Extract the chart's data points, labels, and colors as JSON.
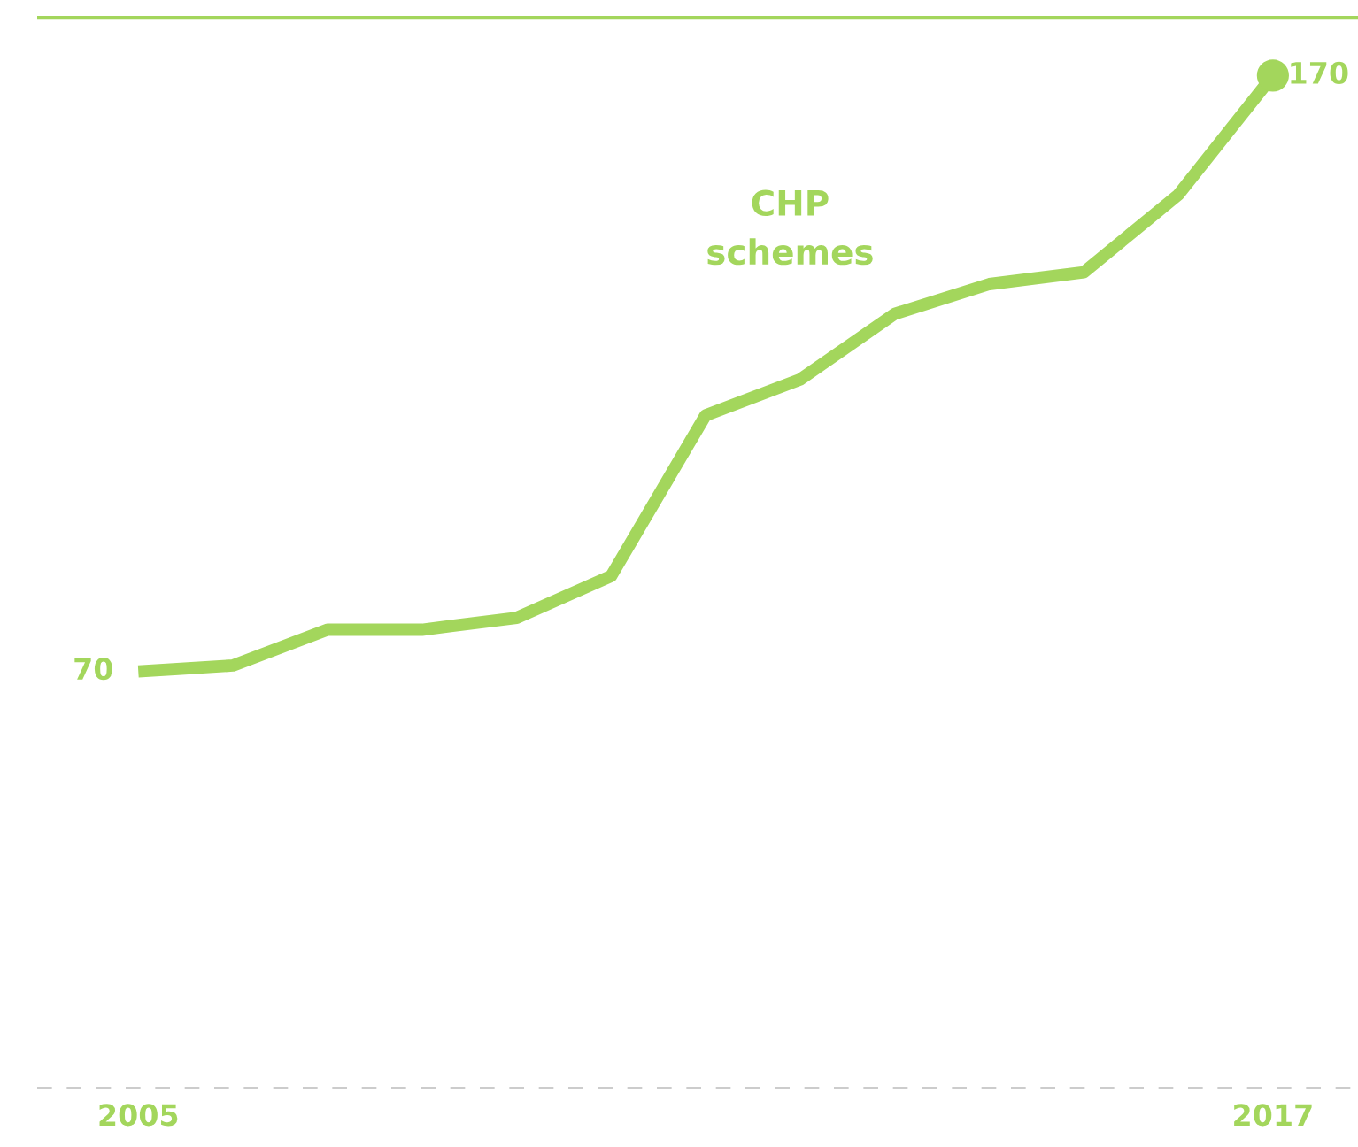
{
  "chart_data": {
    "type": "line",
    "x": [
      2005,
      2006,
      2007,
      2008,
      2009,
      2010,
      2011,
      2012,
      2013,
      2014,
      2015,
      2016,
      2017
    ],
    "series": [
      {
        "name": "CHP\nschemes",
        "color": "#a3d65c",
        "values": [
          70,
          71,
          77,
          77,
          79,
          86,
          113,
          119,
          130,
          135,
          137,
          150,
          170
        ],
        "value_labels": [
          "70",
          null,
          null,
          null,
          null,
          null,
          null,
          null,
          null,
          null,
          null,
          null,
          null
        ]
      },
      {
        "type": "scatter",
        "color": "#a3d65c",
        "x": [
          2017
        ],
        "values": [
          170
        ],
        "value_labels": [
          "170"
        ]
      }
    ],
    "xlim": [
      2003.93,
      2017.9
    ],
    "xticks": [
      2005,
      2017
    ],
    "ylim": [
      0,
      180
    ],
    "tick_labels": "x",
    "grid": false,
    "legend": false,
    "ref_lines": [
      {
        "axis": "y",
        "value": 180,
        "color": "#a3d65c",
        "line_style": "solid"
      },
      {
        "axis": "y",
        "value": 0,
        "color": "#cccccc",
        "line_style": "dashed"
      }
    ]
  }
}
